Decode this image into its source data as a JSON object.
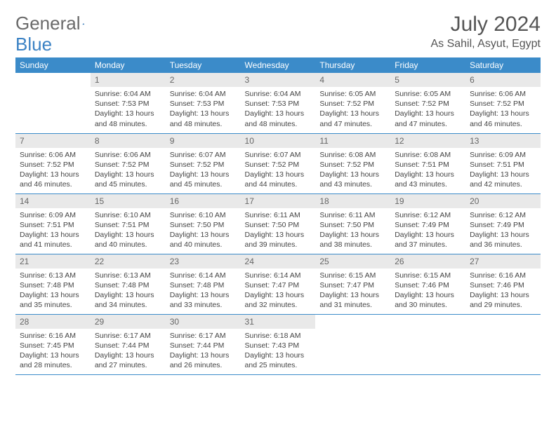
{
  "brand": {
    "name_a": "General",
    "name_b": "Blue"
  },
  "title": "July 2024",
  "location": "As Sahil, Asyut, Egypt",
  "colors": {
    "header_bg": "#3b8bc9",
    "header_text": "#ffffff",
    "daynum_bg": "#e9e9e9",
    "daynum_text": "#666666",
    "body_text": "#444444",
    "rule": "#3b8bc9",
    "brand_gray": "#6a6a6a",
    "brand_blue": "#3b82c4"
  },
  "weekdays": [
    "Sunday",
    "Monday",
    "Tuesday",
    "Wednesday",
    "Thursday",
    "Friday",
    "Saturday"
  ],
  "weeks": [
    [
      null,
      {
        "n": "1",
        "sr": "Sunrise: 6:04 AM",
        "ss": "Sunset: 7:53 PM",
        "d1": "Daylight: 13 hours",
        "d2": "and 48 minutes."
      },
      {
        "n": "2",
        "sr": "Sunrise: 6:04 AM",
        "ss": "Sunset: 7:53 PM",
        "d1": "Daylight: 13 hours",
        "d2": "and 48 minutes."
      },
      {
        "n": "3",
        "sr": "Sunrise: 6:04 AM",
        "ss": "Sunset: 7:53 PM",
        "d1": "Daylight: 13 hours",
        "d2": "and 48 minutes."
      },
      {
        "n": "4",
        "sr": "Sunrise: 6:05 AM",
        "ss": "Sunset: 7:52 PM",
        "d1": "Daylight: 13 hours",
        "d2": "and 47 minutes."
      },
      {
        "n": "5",
        "sr": "Sunrise: 6:05 AM",
        "ss": "Sunset: 7:52 PM",
        "d1": "Daylight: 13 hours",
        "d2": "and 47 minutes."
      },
      {
        "n": "6",
        "sr": "Sunrise: 6:06 AM",
        "ss": "Sunset: 7:52 PM",
        "d1": "Daylight: 13 hours",
        "d2": "and 46 minutes."
      }
    ],
    [
      {
        "n": "7",
        "sr": "Sunrise: 6:06 AM",
        "ss": "Sunset: 7:52 PM",
        "d1": "Daylight: 13 hours",
        "d2": "and 46 minutes."
      },
      {
        "n": "8",
        "sr": "Sunrise: 6:06 AM",
        "ss": "Sunset: 7:52 PM",
        "d1": "Daylight: 13 hours",
        "d2": "and 45 minutes."
      },
      {
        "n": "9",
        "sr": "Sunrise: 6:07 AM",
        "ss": "Sunset: 7:52 PM",
        "d1": "Daylight: 13 hours",
        "d2": "and 45 minutes."
      },
      {
        "n": "10",
        "sr": "Sunrise: 6:07 AM",
        "ss": "Sunset: 7:52 PM",
        "d1": "Daylight: 13 hours",
        "d2": "and 44 minutes."
      },
      {
        "n": "11",
        "sr": "Sunrise: 6:08 AM",
        "ss": "Sunset: 7:52 PM",
        "d1": "Daylight: 13 hours",
        "d2": "and 43 minutes."
      },
      {
        "n": "12",
        "sr": "Sunrise: 6:08 AM",
        "ss": "Sunset: 7:51 PM",
        "d1": "Daylight: 13 hours",
        "d2": "and 43 minutes."
      },
      {
        "n": "13",
        "sr": "Sunrise: 6:09 AM",
        "ss": "Sunset: 7:51 PM",
        "d1": "Daylight: 13 hours",
        "d2": "and 42 minutes."
      }
    ],
    [
      {
        "n": "14",
        "sr": "Sunrise: 6:09 AM",
        "ss": "Sunset: 7:51 PM",
        "d1": "Daylight: 13 hours",
        "d2": "and 41 minutes."
      },
      {
        "n": "15",
        "sr": "Sunrise: 6:10 AM",
        "ss": "Sunset: 7:51 PM",
        "d1": "Daylight: 13 hours",
        "d2": "and 40 minutes."
      },
      {
        "n": "16",
        "sr": "Sunrise: 6:10 AM",
        "ss": "Sunset: 7:50 PM",
        "d1": "Daylight: 13 hours",
        "d2": "and 40 minutes."
      },
      {
        "n": "17",
        "sr": "Sunrise: 6:11 AM",
        "ss": "Sunset: 7:50 PM",
        "d1": "Daylight: 13 hours",
        "d2": "and 39 minutes."
      },
      {
        "n": "18",
        "sr": "Sunrise: 6:11 AM",
        "ss": "Sunset: 7:50 PM",
        "d1": "Daylight: 13 hours",
        "d2": "and 38 minutes."
      },
      {
        "n": "19",
        "sr": "Sunrise: 6:12 AM",
        "ss": "Sunset: 7:49 PM",
        "d1": "Daylight: 13 hours",
        "d2": "and 37 minutes."
      },
      {
        "n": "20",
        "sr": "Sunrise: 6:12 AM",
        "ss": "Sunset: 7:49 PM",
        "d1": "Daylight: 13 hours",
        "d2": "and 36 minutes."
      }
    ],
    [
      {
        "n": "21",
        "sr": "Sunrise: 6:13 AM",
        "ss": "Sunset: 7:48 PM",
        "d1": "Daylight: 13 hours",
        "d2": "and 35 minutes."
      },
      {
        "n": "22",
        "sr": "Sunrise: 6:13 AM",
        "ss": "Sunset: 7:48 PM",
        "d1": "Daylight: 13 hours",
        "d2": "and 34 minutes."
      },
      {
        "n": "23",
        "sr": "Sunrise: 6:14 AM",
        "ss": "Sunset: 7:48 PM",
        "d1": "Daylight: 13 hours",
        "d2": "and 33 minutes."
      },
      {
        "n": "24",
        "sr": "Sunrise: 6:14 AM",
        "ss": "Sunset: 7:47 PM",
        "d1": "Daylight: 13 hours",
        "d2": "and 32 minutes."
      },
      {
        "n": "25",
        "sr": "Sunrise: 6:15 AM",
        "ss": "Sunset: 7:47 PM",
        "d1": "Daylight: 13 hours",
        "d2": "and 31 minutes."
      },
      {
        "n": "26",
        "sr": "Sunrise: 6:15 AM",
        "ss": "Sunset: 7:46 PM",
        "d1": "Daylight: 13 hours",
        "d2": "and 30 minutes."
      },
      {
        "n": "27",
        "sr": "Sunrise: 6:16 AM",
        "ss": "Sunset: 7:46 PM",
        "d1": "Daylight: 13 hours",
        "d2": "and 29 minutes."
      }
    ],
    [
      {
        "n": "28",
        "sr": "Sunrise: 6:16 AM",
        "ss": "Sunset: 7:45 PM",
        "d1": "Daylight: 13 hours",
        "d2": "and 28 minutes."
      },
      {
        "n": "29",
        "sr": "Sunrise: 6:17 AM",
        "ss": "Sunset: 7:44 PM",
        "d1": "Daylight: 13 hours",
        "d2": "and 27 minutes."
      },
      {
        "n": "30",
        "sr": "Sunrise: 6:17 AM",
        "ss": "Sunset: 7:44 PM",
        "d1": "Daylight: 13 hours",
        "d2": "and 26 minutes."
      },
      {
        "n": "31",
        "sr": "Sunrise: 6:18 AM",
        "ss": "Sunset: 7:43 PM",
        "d1": "Daylight: 13 hours",
        "d2": "and 25 minutes."
      },
      null,
      null,
      null
    ]
  ]
}
